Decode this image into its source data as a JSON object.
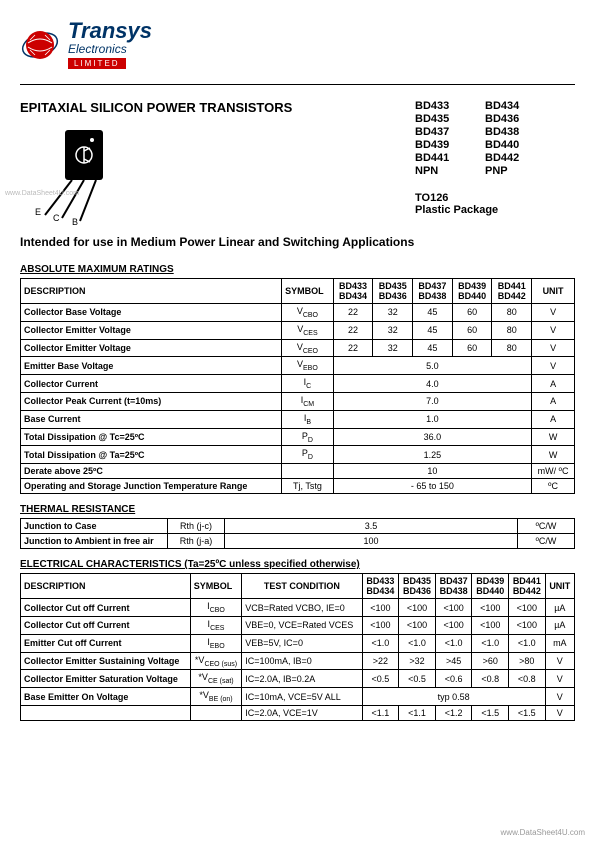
{
  "company": {
    "name": "Transys",
    "sub": "Electronics",
    "badge": "LIMITED"
  },
  "title": "EPITAXIAL SILICON  POWER  TRANSISTORS",
  "parts": {
    "col1": [
      "BD433",
      "BD435",
      "BD437",
      "BD439",
      "BD441",
      "NPN"
    ],
    "col2": [
      "BD434",
      "BD436",
      "BD438",
      "BD440",
      "BD442",
      "PNP"
    ]
  },
  "package": {
    "line1": "TO126",
    "line2": "Plastic Package"
  },
  "intended": "Intended for use in Medium Power Linear and Switching Applications",
  "pins": {
    "e": "E",
    "c": "C",
    "b": "B"
  },
  "abs_ratings": {
    "title": "ABSOLUTE MAXIMUM RATINGS",
    "headers": [
      "DESCRIPTION",
      "SYMBOL",
      "BD433\nBD434",
      "BD435\nBD436",
      "BD437\nBD438",
      "BD439\nBD440",
      "BD441\nBD442",
      "UNIT"
    ],
    "rows": [
      {
        "desc": "Collector Base Voltage",
        "sym": "V",
        "sub": "CBO",
        "vals": [
          "22",
          "32",
          "45",
          "60",
          "80"
        ],
        "unit": "V"
      },
      {
        "desc": "Collector Emitter Voltage",
        "sym": "V",
        "sub": "CES",
        "vals": [
          "22",
          "32",
          "45",
          "60",
          "80"
        ],
        "unit": "V"
      },
      {
        "desc": "Collector Emitter Voltage",
        "sym": "V",
        "sub": "CEO",
        "vals": [
          "22",
          "32",
          "45",
          "60",
          "80"
        ],
        "unit": "V"
      },
      {
        "desc": "Emitter Base Voltage",
        "sym": "V",
        "sub": "EBO",
        "span": "5.0",
        "unit": "V"
      },
      {
        "desc": "Collector Current",
        "sym": "I",
        "sub": "C",
        "span": "4.0",
        "unit": "A"
      },
      {
        "desc": "Collector Peak Current (t=10ms)",
        "sym": "I",
        "sub": "CM",
        "span": "7.0",
        "unit": "A"
      },
      {
        "desc": "Base Current",
        "sym": "I",
        "sub": "B",
        "span": "1.0",
        "unit": "A"
      },
      {
        "desc": "Total Dissipation @ Tc=25ºC",
        "sym": "P",
        "sub": "D",
        "span": "36.0",
        "unit": "W"
      },
      {
        "desc": "Total Dissipation @ Ta=25ºC",
        "sym": "P",
        "sub": "D",
        "span": "1.25",
        "unit": "W"
      },
      {
        "desc": "                    Derate above 25ºC",
        "sym": "",
        "sub": "",
        "span": "10",
        "unit": "mW/ ºC"
      },
      {
        "desc": "Operating and Storage Junction Temperature Range",
        "sym": "Tj, Tstg",
        "sub": "",
        "span": "- 65 to 150",
        "unit": "ºC"
      }
    ]
  },
  "thermal": {
    "title": "THERMAL RESISTANCE",
    "rows": [
      {
        "desc": "Junction to Case",
        "sym": "Rth (j-c)",
        "val": "3.5",
        "unit": "ºC/W"
      },
      {
        "desc": "Junction to Ambient in free air",
        "sym": "Rth (j-a)",
        "val": "100",
        "unit": "ºC/W"
      }
    ]
  },
  "electrical": {
    "title": "ELECTRICAL CHARACTERISTICS (Ta=25ºC unless specified otherwise)",
    "headers": [
      "DESCRIPTION",
      "SYMBOL",
      "TEST CONDITION",
      "BD433\nBD434",
      "BD435\nBD436",
      "BD437\nBD438",
      "BD439\nBD440",
      "BD441\nBD442",
      "UNIT"
    ],
    "rows": [
      {
        "desc": "Collector Cut off Current",
        "sym": "I",
        "sub": "CBO",
        "cond": "VCB=Rated VCBO, IE=0",
        "vals": [
          "<100",
          "<100",
          "<100",
          "<100",
          "<100"
        ],
        "unit": "µA"
      },
      {
        "desc": "Collector Cut off Current",
        "sym": "I",
        "sub": "CES",
        "cond": "VBE=0, VCE=Rated VCES",
        "vals": [
          "<100",
          "<100",
          "<100",
          "<100",
          "<100"
        ],
        "unit": "µA"
      },
      {
        "desc": "Emitter Cut off Current",
        "sym": "I",
        "sub": "EBO",
        "cond": "VEB=5V, IC=0",
        "vals": [
          "<1.0",
          "<1.0",
          "<1.0",
          "<1.0",
          "<1.0"
        ],
        "unit": "mA"
      },
      {
        "desc": "Collector Emitter Sustaining Voltage",
        "sym": "*V",
        "sub": "CEO (sus)",
        "cond": "IC=100mA, IB=0",
        "vals": [
          ">22",
          ">32",
          ">45",
          ">60",
          ">80"
        ],
        "unit": "V"
      },
      {
        "desc": "Collector Emitter Saturation Voltage",
        "sym": "*V",
        "sub": "CE (sat)",
        "cond": "IC=2.0A, IB=0.2A",
        "vals": [
          "<0.5",
          "<0.5",
          "<0.6",
          "<0.8",
          "<0.8"
        ],
        "unit": "V"
      },
      {
        "desc": "Base Emitter On Voltage",
        "sym": "*V",
        "sub": "BE (on)",
        "cond": "IC=10mA, VCE=5V  ALL",
        "span": "typ 0.58",
        "unit": "V"
      },
      {
        "desc": "",
        "sym": "",
        "sub": "",
        "cond": "IC=2.0A, VCE=1V",
        "vals": [
          "<1.1",
          "<1.1",
          "<1.2",
          "<1.5",
          "<1.5"
        ],
        "unit": "V"
      }
    ]
  },
  "watermark": "www.DataSheet4U.com",
  "watermark_left": "www.DataSheet4U.com"
}
